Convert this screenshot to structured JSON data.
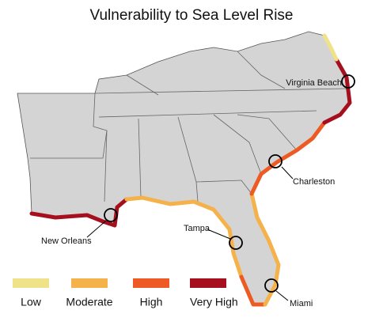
{
  "title": "Vulnerability to Sea Level Rise",
  "cities": [
    {
      "label": "Virginia Beach"
    },
    {
      "label": "Charleston"
    },
    {
      "label": "New Orleans"
    },
    {
      "label": "Tampa"
    },
    {
      "label": "Miami"
    }
  ],
  "legend": [
    {
      "label": "Low",
      "color": "#efe38a"
    },
    {
      "label": "Moderate",
      "color": "#f5b14a"
    },
    {
      "label": "High",
      "color": "#ee5a24"
    },
    {
      "label": "Very High",
      "color": "#a50f1e"
    }
  ]
}
